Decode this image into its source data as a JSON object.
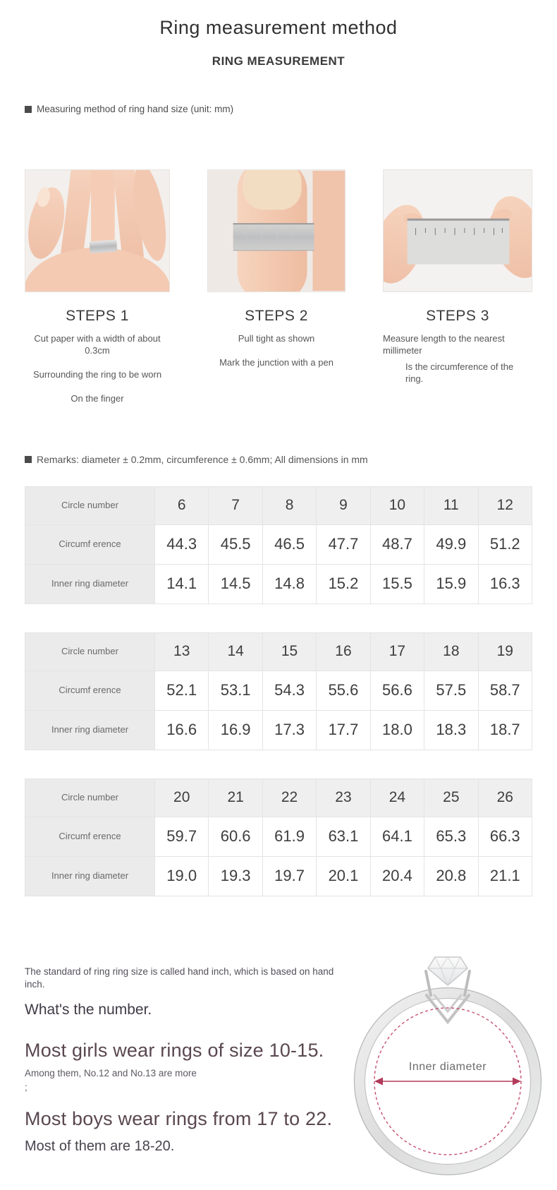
{
  "page": {
    "title": "Ring measurement method",
    "subtitle": "RING MEASUREMENT",
    "section_label": "Measuring method of ring hand size (unit: mm)",
    "remarks": "Remarks: diameter ± 0.2mm, circumference ± 0.6mm; All dimensions in mm"
  },
  "steps": [
    {
      "title": "STEPS 1",
      "photo_icon": "hand-with-ring-photo",
      "lines": [
        "Cut paper with a width of about 0.3cm",
        "Surrounding the ring to be worn",
        "On the finger"
      ]
    },
    {
      "title": "STEPS 2",
      "photo_icon": "paper-band-on-finger-photo",
      "lines": [
        "Pull tight as shown",
        "Mark the junction with a pen"
      ]
    },
    {
      "title": "STEPS 3",
      "photo_icon": "ruler-measuring-photo",
      "lines": [
        "Measure length to the nearest millimeter",
        "Is the circumference of the ring."
      ]
    }
  ],
  "size_tables": [
    {
      "rows": [
        {
          "label": "Circle number",
          "values": [
            "6",
            "7",
            "8",
            "9",
            "10",
            "11",
            "12"
          ]
        },
        {
          "label": "Circumf erence",
          "values": [
            "44.3",
            "45.5",
            "46.5",
            "47.7",
            "48.7",
            "49.9",
            "51.2"
          ]
        },
        {
          "label": "Inner ring diameter",
          "values": [
            "14.1",
            "14.5",
            "14.8",
            "15.2",
            "15.5",
            "15.9",
            "16.3"
          ]
        }
      ]
    },
    {
      "rows": [
        {
          "label": "Circle number",
          "values": [
            "13",
            "14",
            "15",
            "16",
            "17",
            "18",
            "19"
          ]
        },
        {
          "label": "Circumf erence",
          "values": [
            "52.1",
            "53.1",
            "54.3",
            "55.6",
            "56.6",
            "57.5",
            "58.7"
          ]
        },
        {
          "label": "Inner ring diameter",
          "values": [
            "16.6",
            "16.9",
            "17.3",
            "17.7",
            "18.0",
            "18.3",
            "18.7"
          ]
        }
      ]
    },
    {
      "rows": [
        {
          "label": "Circle number",
          "values": [
            "20",
            "21",
            "22",
            "23",
            "24",
            "25",
            "26"
          ]
        },
        {
          "label": "Circumf erence",
          "values": [
            "59.7",
            "60.6",
            "61.9",
            "63.1",
            "64.1",
            "65.3",
            "66.3"
          ]
        },
        {
          "label": "Inner ring diameter",
          "values": [
            "19.0",
            "19.3",
            "19.7",
            "20.1",
            "20.4",
            "20.8",
            "21.1"
          ]
        }
      ]
    }
  ],
  "footer": {
    "standard_text": "The standard of ring ring size is called hand inch, which is based on hand inch.",
    "whats_number": "What's the number.",
    "girls_line": "Most girls wear rings of size 10-15.",
    "girls_note": "Among them, No.12 and No.13 are more",
    "girls_note2": ";",
    "boys_line": "Most boys wear rings from 17 to 22.",
    "boys_note": "Most of them are 18-20.",
    "diagram_label": "Inner diameter"
  },
  "colors": {
    "accent_crimson": "#bf4266",
    "table_header_bg": "#efefef",
    "table_label_bg": "#ebebeb",
    "big_text": "#5a4750"
  }
}
